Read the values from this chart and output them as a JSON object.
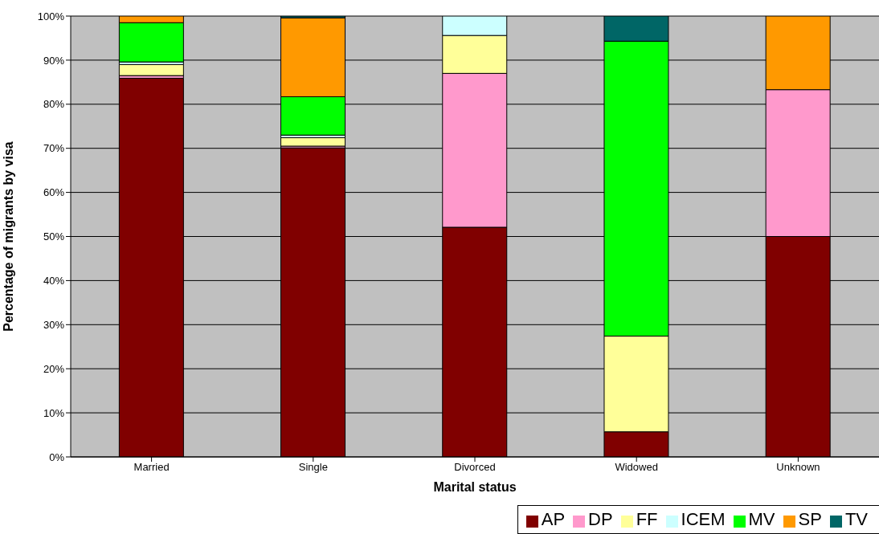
{
  "chart_data": {
    "type": "bar",
    "stacked": true,
    "xlabel": "Marital status",
    "ylabel": "Percentage of migrants by visa",
    "categories": [
      "Married",
      "Single",
      "Divorced",
      "Widowed",
      "Unknown"
    ],
    "series": [
      {
        "name": "AP",
        "color": "#800000",
        "values": [
          85.9,
          70.1,
          52.1,
          5.7,
          50
        ]
      },
      {
        "name": "DP",
        "color": "#ff99cc",
        "values": [
          0.6,
          0.4,
          34.9,
          null,
          33.3
        ]
      },
      {
        "name": "FF",
        "color": "#ffff99",
        "values": [
          2.5,
          1.9,
          8.6,
          21.7,
          null
        ]
      },
      {
        "name": "ICEM",
        "color": "#ccffff",
        "values": [
          0.6,
          0.6,
          4.4,
          null,
          null
        ]
      },
      {
        "name": "MV",
        "color": "#00ff00",
        "values": [
          8.9,
          8.7,
          null,
          66.9,
          null
        ]
      },
      {
        "name": "SP",
        "color": "#ff9900",
        "values": [
          1.5,
          17.9,
          null,
          null,
          16.7
        ]
      },
      {
        "name": "TV",
        "color": "#006666",
        "values": [
          null,
          0.4,
          null,
          5.7,
          null
        ]
      }
    ],
    "ylim": [
      0,
      100
    ],
    "yticks": [
      {
        "value": 0,
        "label": "0%"
      },
      {
        "value": 10,
        "label": "10%"
      },
      {
        "value": 20,
        "label": "20%"
      },
      {
        "value": 30,
        "label": "30%"
      },
      {
        "value": 40,
        "label": "40%"
      },
      {
        "value": 50,
        "label": "50%"
      },
      {
        "value": 60,
        "label": "60%"
      },
      {
        "value": 70,
        "label": "70%"
      },
      {
        "value": 80,
        "label": "80%"
      },
      {
        "value": 90,
        "label": "90%"
      },
      {
        "value": 100,
        "label": "100%"
      }
    ],
    "grid": "y",
    "legend": "bottom right"
  }
}
